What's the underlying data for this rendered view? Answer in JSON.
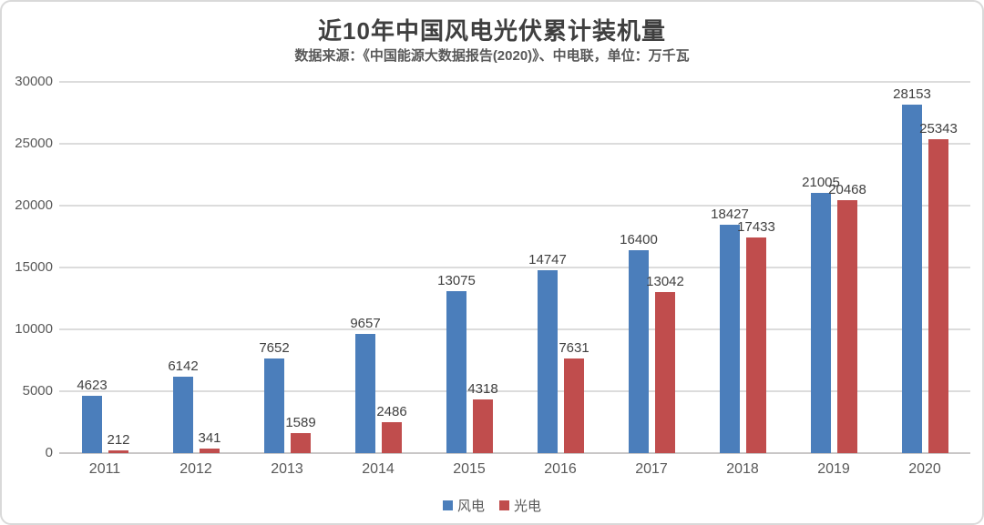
{
  "chart_data": {
    "type": "bar",
    "title": "近10年中国风电光伏累计装机量",
    "subtitle": "数据来源：《中国能源大数据报告(2020)》、中电联，单位：万千瓦",
    "unit": "万千瓦",
    "categories": [
      "2011",
      "2012",
      "2013",
      "2014",
      "2015",
      "2016",
      "2017",
      "2018",
      "2019",
      "2020"
    ],
    "series": [
      {
        "name": "风电",
        "key": "wind",
        "color": "#4B7EBB",
        "values": [
          4623,
          6142,
          7652,
          9657,
          13075,
          14747,
          16400,
          18427,
          21005,
          28153
        ]
      },
      {
        "name": "光电",
        "key": "solar",
        "color": "#C04D4D",
        "values": [
          212,
          341,
          1589,
          2486,
          4318,
          7631,
          13042,
          17433,
          20468,
          25343
        ]
      }
    ],
    "ylim": [
      0,
      30000
    ],
    "yticks": [
      0,
      5000,
      10000,
      15000,
      20000,
      25000,
      30000
    ],
    "grid": true,
    "legend_position": "bottom",
    "colors": {
      "title_text": "#3f3f3f",
      "axis_text": "#595959",
      "data_label_text": "#404040",
      "gridline": "#dcdcdc",
      "frame_border": "#d9d9d9"
    }
  }
}
